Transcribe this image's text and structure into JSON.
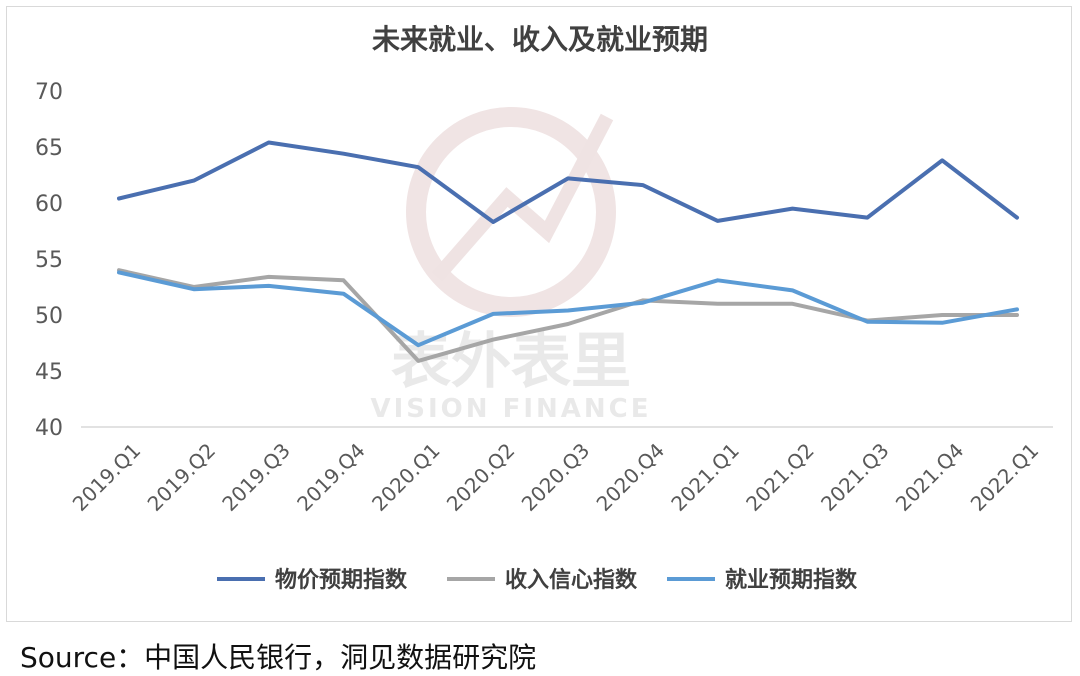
{
  "chart_data": {
    "type": "line",
    "title": "未来就业、收入及就业预期",
    "categories": [
      "2019.Q1",
      "2019.Q2",
      "2019.Q3",
      "2019.Q4",
      "2020.Q1",
      "2020.Q2",
      "2020.Q3",
      "2020.Q4",
      "2021.Q1",
      "2021.Q2",
      "2021.Q3",
      "2021.Q4",
      "2022.Q1"
    ],
    "ylim": [
      40,
      70
    ],
    "yticks": [
      40,
      45,
      50,
      55,
      60,
      65,
      70
    ],
    "grid": false,
    "legend_position": "bottom",
    "series": [
      {
        "name": "物价预期指数",
        "color": "#4a6fb0",
        "values": [
          60.4,
          62.0,
          65.4,
          64.4,
          63.2,
          58.3,
          62.2,
          61.6,
          58.4,
          59.5,
          58.7,
          63.8,
          58.7
        ]
      },
      {
        "name": "收入信心指数",
        "color": "#a6a6a6",
        "values": [
          54.0,
          52.5,
          53.4,
          53.1,
          45.9,
          47.8,
          49.2,
          51.3,
          51.0,
          51.0,
          49.5,
          50.0,
          50.0
        ]
      },
      {
        "name": "就业预期指数",
        "color": "#5b9bd5",
        "values": [
          53.8,
          52.3,
          52.6,
          51.9,
          47.3,
          50.1,
          50.4,
          51.1,
          53.1,
          52.2,
          49.4,
          49.3,
          50.5
        ]
      }
    ]
  },
  "watermark": {
    "cn": "表外表里",
    "en": "VISION FINANCE"
  },
  "source": "Source：中国人民银行，洞见数据研究院"
}
